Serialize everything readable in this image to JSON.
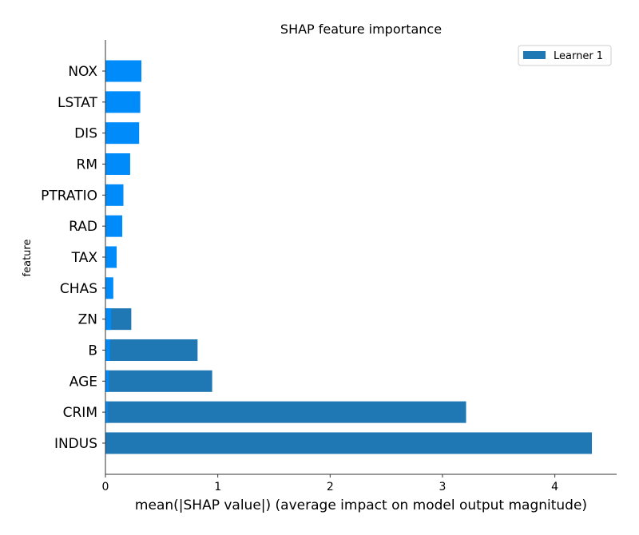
{
  "chart_data": {
    "type": "bar",
    "orientation": "horizontal",
    "title": "SHAP feature importance",
    "xlabel": "mean(|SHAP value|) (average impact on model output magnitude)",
    "ylabel": "feature",
    "xlim": [
      0,
      4.55
    ],
    "xticks": [
      0,
      1,
      2,
      3,
      4
    ],
    "legend": {
      "placement": "top-right",
      "entries": [
        "Learner 1"
      ]
    },
    "categories": [
      "NOX",
      "LSTAT",
      "DIS",
      "RM",
      "PTRATIO",
      "RAD",
      "TAX",
      "CHAS",
      "ZN",
      "B",
      "AGE",
      "CRIM",
      "INDUS"
    ],
    "series": [
      {
        "name": "Learner 1",
        "color": "#1f77b4",
        "values": [
          0,
          0,
          0,
          0,
          0,
          0,
          0,
          0,
          0.23,
          0.82,
          0.95,
          3.21,
          4.33
        ]
      }
    ],
    "overlay": {
      "color": "#008bfb",
      "values": [
        0.32,
        0.31,
        0.3,
        0.22,
        0.16,
        0.15,
        0.1,
        0.07,
        0.05,
        0.04,
        0.03,
        0.02,
        0.0
      ]
    },
    "grid": false
  }
}
